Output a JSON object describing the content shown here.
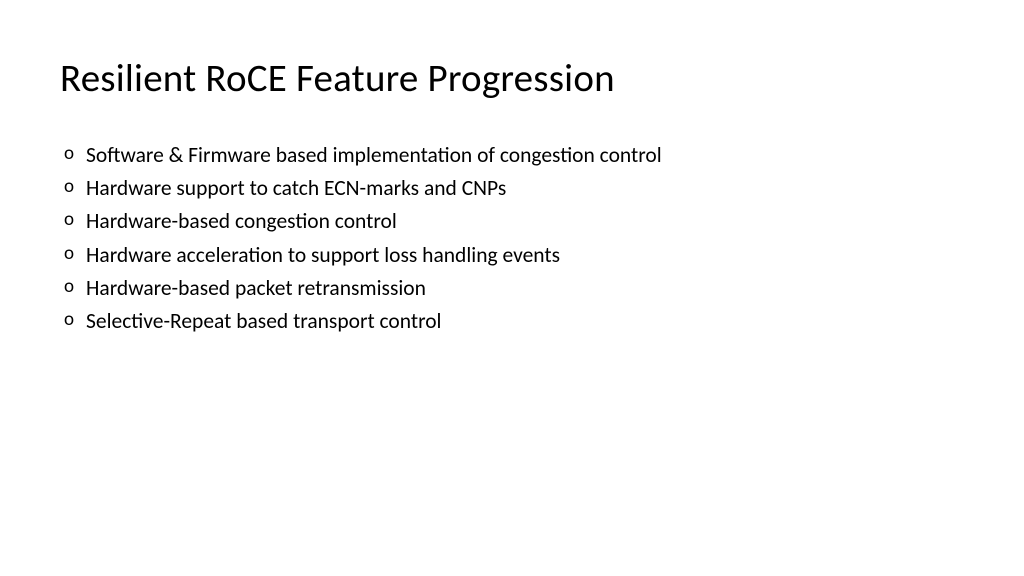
{
  "slide": {
    "title": "Resilient RoCE Feature Progression",
    "bullets": [
      "Software & Firmware based implementation of congestion control",
      "Hardware support to catch ECN-marks and CNPs",
      "Hardware-based congestion control",
      "Hardware acceleration to support loss handling events",
      "Hardware-based packet retransmission",
      "Selective-Repeat based transport control"
    ]
  },
  "style": {
    "background_color": "#ffffff",
    "text_color": "#000000",
    "title_fontsize": 39,
    "body_fontsize": 21.5,
    "bullet_marker": "o",
    "font_family": "Calibri"
  }
}
